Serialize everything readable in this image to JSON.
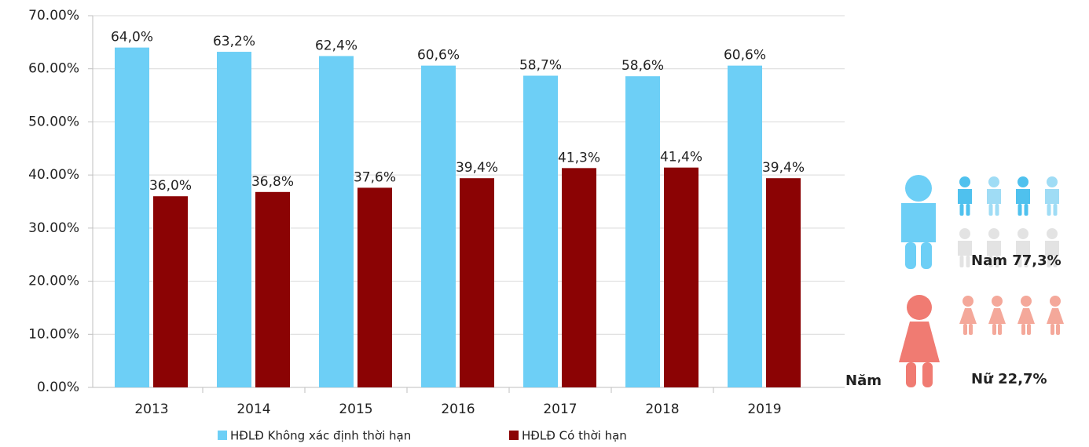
{
  "chart_data": {
    "type": "bar",
    "categories": [
      "2013",
      "2014",
      "2015",
      "2016",
      "2017",
      "2018",
      "2019"
    ],
    "x_label": "Năm",
    "series": [
      {
        "name": "HĐLĐ Không xác định thời hạn",
        "color": "#6dcff6",
        "values": [
          64.0,
          63.2,
          62.4,
          60.6,
          58.7,
          58.6,
          60.6
        ],
        "value_labels": [
          "64,0%",
          "63,2%",
          "62,4%",
          "60,6%",
          "58,7%",
          "58,6%",
          "60,6%"
        ]
      },
      {
        "name": "HĐLĐ Có thời hạn",
        "color": "#8b0304",
        "values": [
          36.0,
          36.8,
          37.6,
          39.4,
          41.3,
          41.4,
          39.4
        ],
        "value_labels": [
          "36,0%",
          "36,8%",
          "37,6%",
          "39,4%",
          "41,3%",
          "41,4%",
          "39,4%"
        ]
      }
    ],
    "ylim": [
      0,
      70
    ],
    "yticks": [
      {
        "value": 0,
        "label": "0.00%"
      },
      {
        "value": 10,
        "label": "10.00%"
      },
      {
        "value": 20,
        "label": "20.00%"
      },
      {
        "value": 30,
        "label": "30.00%"
      },
      {
        "value": 40,
        "label": "40.00%"
      },
      {
        "value": 50,
        "label": "50.00%"
      },
      {
        "value": 60,
        "label": "60.00%"
      },
      {
        "value": 70,
        "label": "70.00%"
      }
    ],
    "grid": true,
    "legend": "bottom"
  },
  "infographic": {
    "male_label": "Nam 77,3%",
    "female_label": "Nữ 22,7%"
  }
}
